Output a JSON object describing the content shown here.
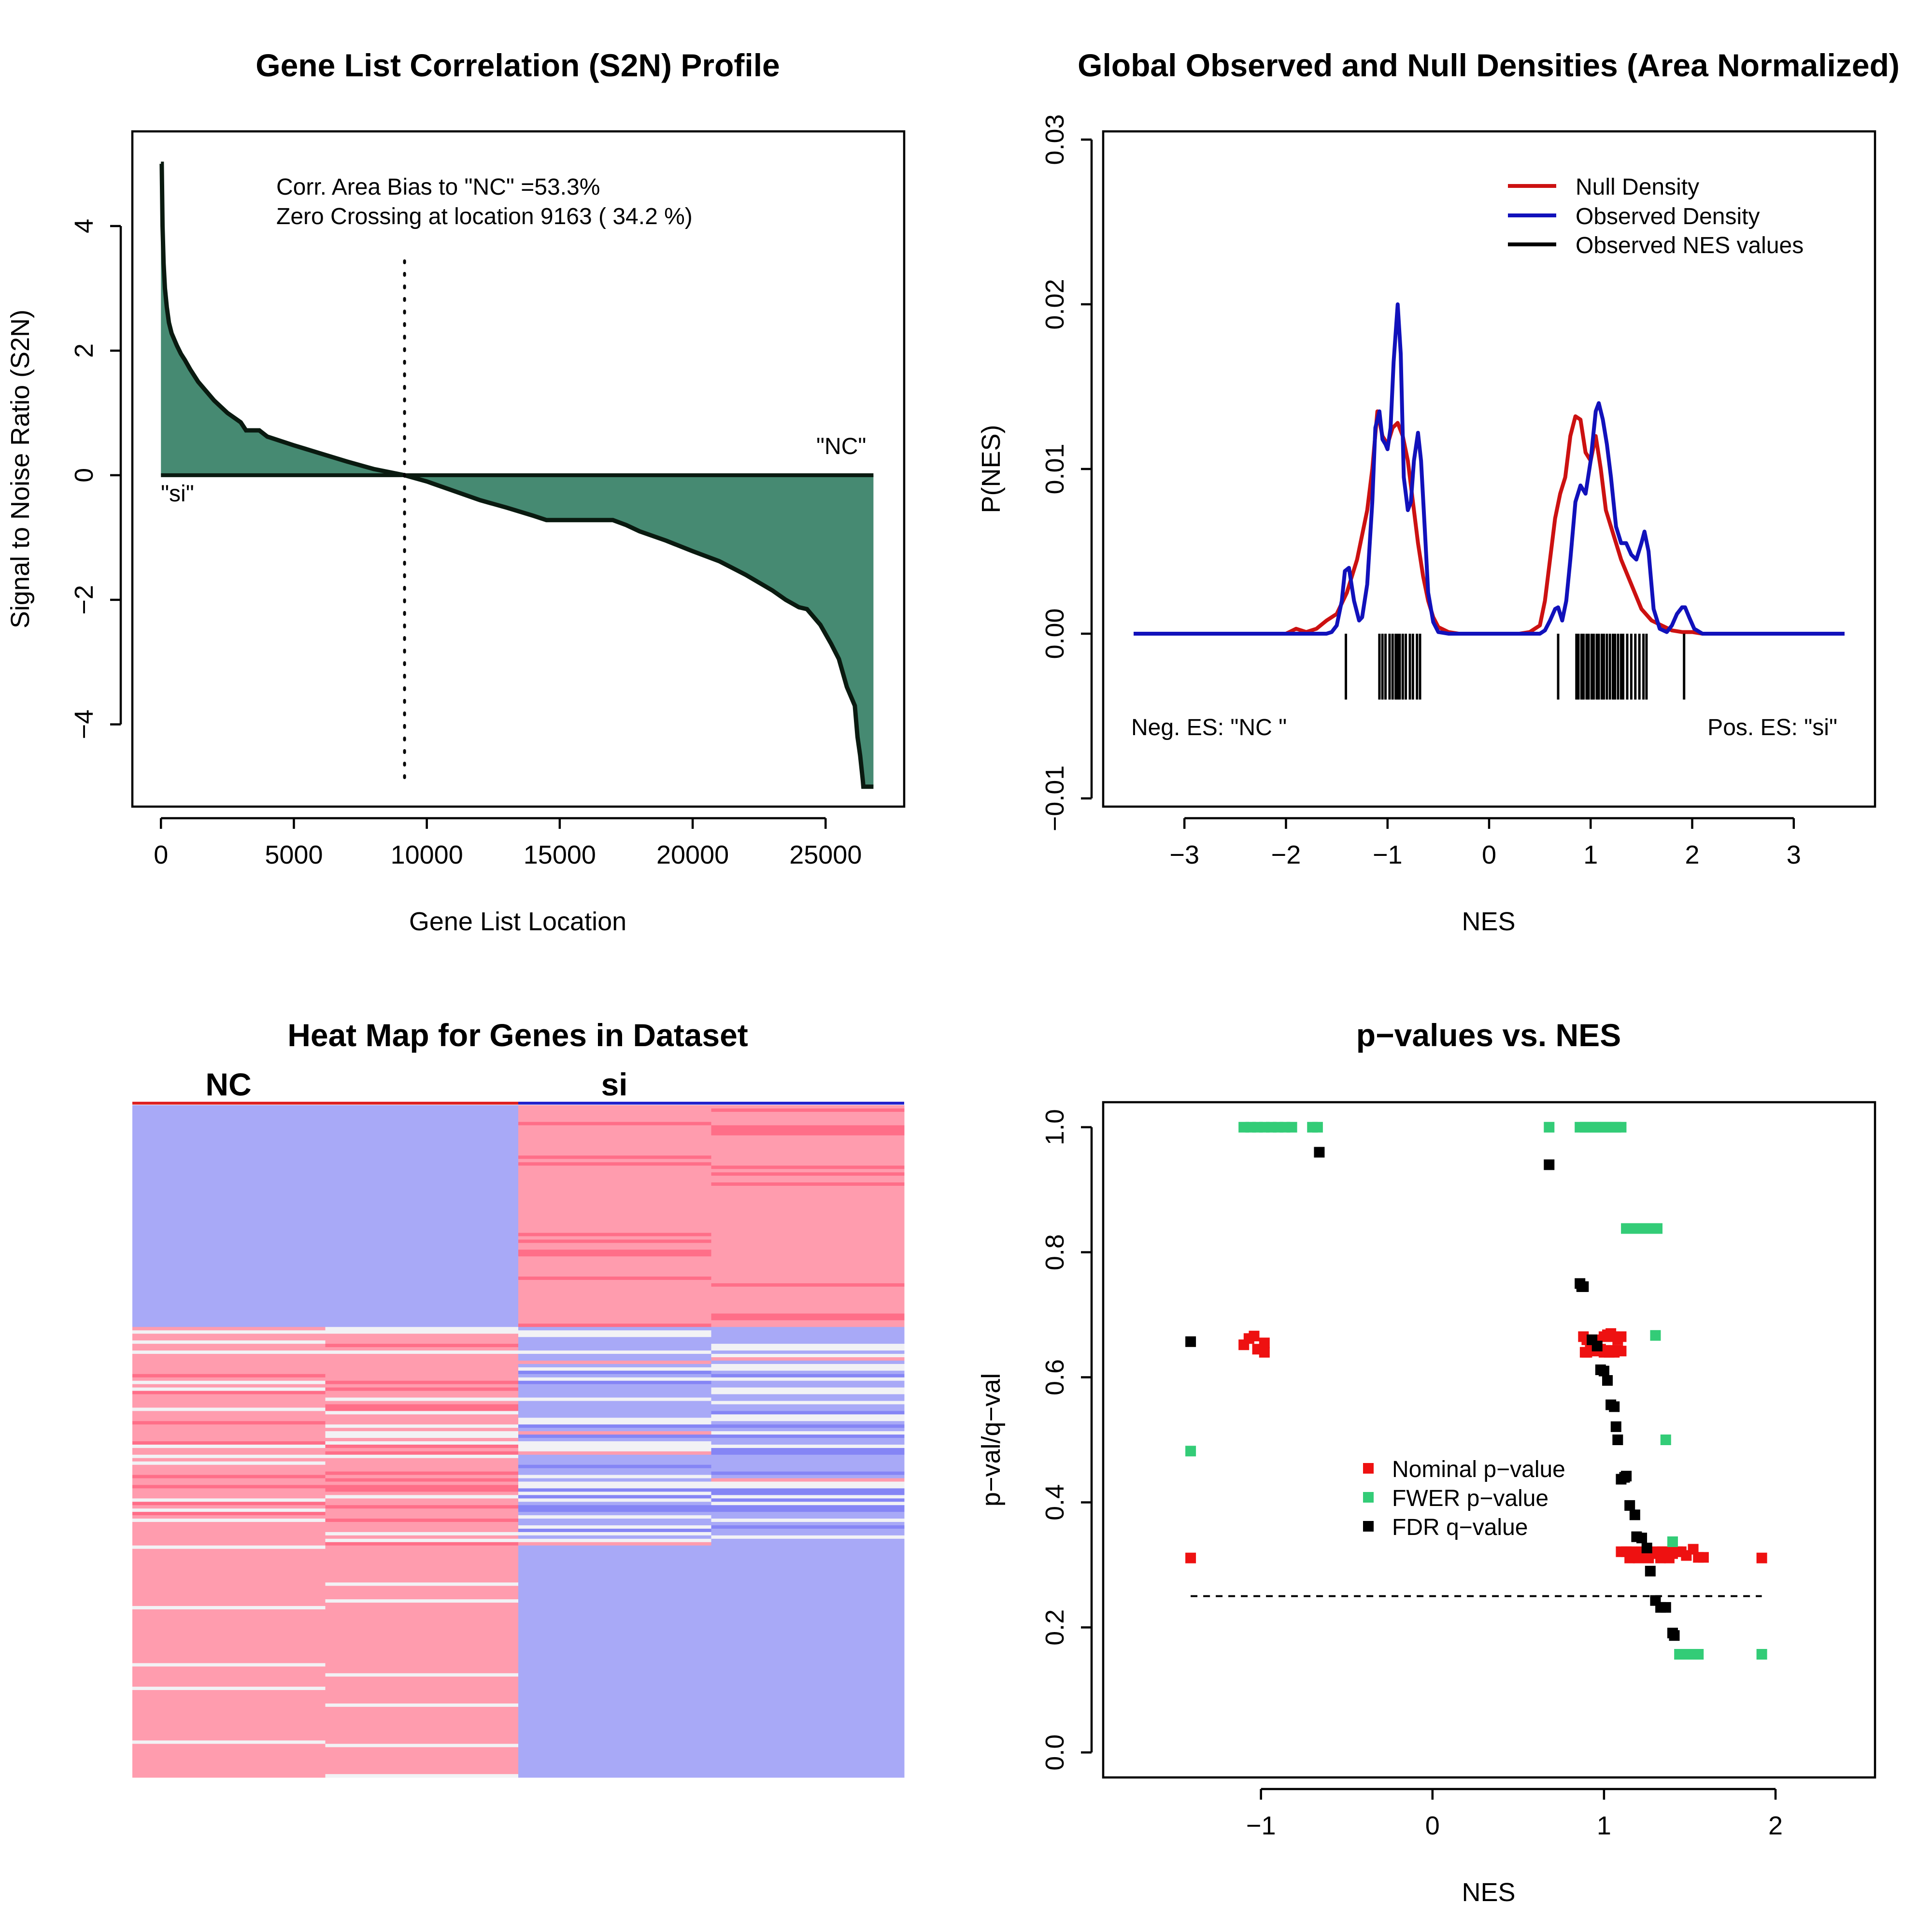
{
  "chart_data": [
    {
      "type": "area",
      "title": "Gene List Correlation (S2N) Profile",
      "xlabel": "Gene List Location",
      "ylabel": "Signal to Noise Ratio (S2N)",
      "xlim": [
        -1076,
        27956
      ],
      "ylim": [
        -5.32,
        5.52
      ],
      "xticks": [
        0,
        5000,
        10000,
        15000,
        20000,
        25000
      ],
      "xtick_labels": [
        "0",
        "5000",
        "10000",
        "15000",
        "20000",
        "25000"
      ],
      "yticks": [
        -4,
        -2,
        0,
        2,
        4
      ],
      "ytick_labels": [
        "−4",
        "−2",
        "0",
        "2",
        "4"
      ],
      "annotations": [
        "Corr. Area Bias to \"NC\" =53.3%",
        "Zero Crossing at location  9163  ( 34.2  %)"
      ],
      "label_pos": "\"NC\"",
      "label_neg": "\"si\"",
      "zero_crossing": 9163,
      "x": [
        0,
        30,
        60,
        100,
        150,
        220,
        300,
        400,
        500,
        600,
        750,
        900,
        1100,
        1400,
        1700,
        2000,
        2500,
        3000,
        3200,
        3700,
        4000,
        5000,
        6000,
        7000,
        8000,
        9163,
        10000,
        11000,
        12000,
        13000,
        14000,
        14500,
        15000,
        16000,
        17000,
        17500,
        18000,
        19000,
        20000,
        21000,
        22000,
        23000,
        23500,
        24000,
        24300,
        24800,
        25200,
        25500,
        25800,
        25950,
        26000,
        26100,
        26200,
        26300,
        26400,
        26420,
        26500,
        26600,
        26800
      ],
      "values": [
        5.0,
        5.0,
        4.0,
        3.4,
        3.0,
        2.7,
        2.45,
        2.28,
        2.18,
        2.08,
        1.95,
        1.85,
        1.7,
        1.5,
        1.35,
        1.2,
        1.0,
        0.85,
        0.72,
        0.72,
        0.62,
        0.48,
        0.35,
        0.22,
        0.1,
        0.0,
        -0.1,
        -0.25,
        -0.4,
        -0.52,
        -0.65,
        -0.72,
        -0.72,
        -0.72,
        -0.72,
        -0.8,
        -0.9,
        -1.05,
        -1.22,
        -1.38,
        -1.6,
        -1.85,
        -2.0,
        -2.12,
        -2.15,
        -2.4,
        -2.7,
        -2.95,
        -3.4,
        -3.55,
        -3.6,
        -3.7,
        -4.2,
        -4.5,
        -4.9,
        -5.0,
        -5.0,
        -5.0,
        -5.0
      ],
      "colors": {
        "fill": "#468a72",
        "line": "#0a1a10"
      }
    },
    {
      "type": "line",
      "title": "Global Observed and Null Densities (Area Normalized)",
      "xlabel": "NES",
      "ylabel": "P(NES)",
      "xlim": [
        -3.8,
        3.8
      ],
      "ylim": [
        -0.0105,
        0.0305
      ],
      "xticks": [
        -3,
        -2,
        -1,
        0,
        1,
        2,
        3
      ],
      "xtick_labels": [
        "−3",
        "−2",
        "−1",
        "0",
        "1",
        "2",
        "3"
      ],
      "yticks": [
        -0.01,
        0.0,
        0.01,
        0.02,
        0.03
      ],
      "ytick_labels": [
        "−0.01",
        "0.00",
        "0.01",
        "0.02",
        "0.03"
      ],
      "legend": [
        "Null Density",
        "Observed Density",
        "Observed NES values"
      ],
      "legend_position": "top-right",
      "annotation_left": "Neg. ES: \"NC \"",
      "annotation_right": "Pos. ES: \"si\"",
      "series": [
        {
          "name": "Null Density",
          "color": "#cc1111",
          "x": [
            -3.5,
            -2.1,
            -2.0,
            -1.9,
            -1.8,
            -1.7,
            -1.6,
            -1.5,
            -1.4,
            -1.3,
            -1.2,
            -1.15,
            -1.1,
            -1.05,
            -1.0,
            -0.95,
            -0.9,
            -0.85,
            -0.8,
            -0.75,
            -0.7,
            -0.65,
            -0.6,
            -0.55,
            -0.5,
            -0.4,
            -0.3,
            0.0,
            0.3,
            0.4,
            0.5,
            0.55,
            0.6,
            0.65,
            0.7,
            0.75,
            0.8,
            0.85,
            0.9,
            0.95,
            1.0,
            1.05,
            1.1,
            1.15,
            1.2,
            1.25,
            1.3,
            1.4,
            1.5,
            1.6,
            1.7,
            1.8,
            1.9,
            2.0,
            2.1,
            3.5
          ],
          "values": [
            0,
            0,
            0,
            0.0003,
            0.0001,
            0.0003,
            0.0008,
            0.0012,
            0.0025,
            0.0045,
            0.0075,
            0.01,
            0.0135,
            0.012,
            0.0115,
            0.0125,
            0.0128,
            0.012,
            0.0105,
            0.008,
            0.0055,
            0.0035,
            0.002,
            0.001,
            0.0004,
            0.0001,
            0,
            0,
            0,
            0.0001,
            0.0005,
            0.002,
            0.0045,
            0.007,
            0.0085,
            0.0095,
            0.012,
            0.0132,
            0.013,
            0.011,
            0.0105,
            0.012,
            0.01,
            0.0075,
            0.0065,
            0.0055,
            0.0045,
            0.003,
            0.0015,
            0.0008,
            0.0005,
            0.0002,
            0.0001,
            0.0001,
            0,
            0
          ]
        },
        {
          "name": "Observed Density",
          "color": "#1111bb",
          "x": [
            -3.5,
            -1.6,
            -1.55,
            -1.5,
            -1.45,
            -1.42,
            -1.38,
            -1.33,
            -1.28,
            -1.25,
            -1.2,
            -1.15,
            -1.12,
            -1.08,
            -1.05,
            -1.02,
            -1.0,
            -0.97,
            -0.94,
            -0.9,
            -0.87,
            -0.84,
            -0.8,
            -0.77,
            -0.74,
            -0.7,
            -0.67,
            -0.63,
            -0.6,
            -0.55,
            -0.5,
            -0.4,
            0.0,
            0.5,
            0.55,
            0.6,
            0.65,
            0.68,
            0.72,
            0.76,
            0.8,
            0.85,
            0.9,
            0.95,
            1.0,
            1.05,
            1.08,
            1.12,
            1.16,
            1.2,
            1.25,
            1.3,
            1.35,
            1.4,
            1.45,
            1.5,
            1.53,
            1.57,
            1.62,
            1.68,
            1.75,
            1.8,
            1.85,
            1.9,
            1.93,
            1.97,
            2.02,
            2.1,
            3.5
          ],
          "values": [
            0,
            0,
            0.0001,
            0.0005,
            0.002,
            0.0038,
            0.004,
            0.002,
            0.0008,
            0.001,
            0.003,
            0.008,
            0.0125,
            0.0135,
            0.0118,
            0.0115,
            0.0112,
            0.0125,
            0.0165,
            0.02,
            0.017,
            0.0095,
            0.0075,
            0.008,
            0.0105,
            0.0122,
            0.0105,
            0.006,
            0.0025,
            0.0007,
            0.0001,
            0,
            0,
            0,
            0.0002,
            0.0008,
            0.0015,
            0.0016,
            0.0008,
            0.002,
            0.0045,
            0.008,
            0.009,
            0.0085,
            0.0105,
            0.0135,
            0.014,
            0.013,
            0.0115,
            0.0095,
            0.0065,
            0.0055,
            0.0055,
            0.0048,
            0.0045,
            0.0055,
            0.0062,
            0.005,
            0.0015,
            0.0003,
            0.0001,
            0.0005,
            0.0012,
            0.0016,
            0.0016,
            0.001,
            0.0003,
            0,
            0
          ]
        }
      ],
      "observed_nes": [
        -1.41,
        -1.08,
        -1.05,
        -1.02,
        -0.98,
        -0.95,
        -0.92,
        -0.9,
        -0.88,
        -0.85,
        -0.82,
        -0.78,
        -0.75,
        -0.71,
        -0.68,
        0.68,
        0.86,
        0.88,
        0.91,
        0.93,
        0.96,
        0.98,
        1.01,
        1.03,
        1.06,
        1.08,
        1.11,
        1.13,
        1.16,
        1.19,
        1.22,
        1.24,
        1.27,
        1.3,
        1.32,
        1.36,
        1.4,
        1.44,
        1.48,
        1.52,
        1.55,
        1.92
      ]
    },
    {
      "type": "heatmap",
      "title": "Heat Map for Genes in Dataset",
      "column_groups": [
        "NC",
        "si"
      ],
      "group_colors": [
        "#dd2222",
        "#2222cc"
      ],
      "columns": 4,
      "colors": {
        "red": "#ff9cae",
        "blue": "#a8a9f7",
        "pale": "#f2f2f5",
        "deep_red": "#ff6e88",
        "deep_blue": "#8585f5"
      }
    },
    {
      "type": "scatter",
      "title": "p−values vs. NES",
      "xlabel": "NES",
      "ylabel": "p−val/q−val",
      "xlim": [
        -1.92,
        2.58
      ],
      "ylim": [
        -0.04,
        1.04
      ],
      "xticks": [
        -1,
        0,
        1,
        2
      ],
      "xtick_labels": [
        "−1",
        "0",
        "1",
        "2"
      ],
      "yticks": [
        0.0,
        0.2,
        0.4,
        0.6,
        0.8,
        1.0
      ],
      "ytick_labels": [
        "0.0",
        "0.2",
        "0.4",
        "0.6",
        "0.8",
        "1.0"
      ],
      "threshold_line": {
        "y": 0.25,
        "x_from": -1.41,
        "x_to": 1.92
      },
      "legend": [
        "Nominal p−value",
        "FWER p−value",
        "FDR q−value"
      ],
      "legend_position": "center",
      "series": [
        {
          "name": "Nominal p−value",
          "color": "#ee1111",
          "x": [
            -1.41,
            -1.1,
            -1.07,
            -1.04,
            -1.02,
            -0.98,
            -0.98,
            0.88,
            0.9,
            0.92,
            0.94,
            0.96,
            0.98,
            1.0,
            1.02,
            1.04,
            1.06,
            1.08,
            1.1,
            0.89,
            0.95,
            1.01,
            1.05,
            1.08,
            1.1,
            0.9,
            1.0,
            1.03,
            1.06,
            1.1,
            1.13,
            1.16,
            1.19,
            1.22,
            1.25,
            1.28,
            1.31,
            1.34,
            1.37,
            1.4,
            1.43,
            1.45,
            1.48,
            1.52,
            1.55,
            1.58,
            1.92,
            1.15,
            1.2,
            1.26,
            1.33,
            1.38
          ],
          "values": [
            0.311,
            0.652,
            0.662,
            0.666,
            0.645,
            0.655,
            0.64,
            0.665,
            0.66,
            0.655,
            0.66,
            0.652,
            0.645,
            0.665,
            0.668,
            0.67,
            0.665,
            0.66,
            0.665,
            0.64,
            0.642,
            0.643,
            0.643,
            0.643,
            0.642,
            0.64,
            0.64,
            0.64,
            0.64,
            0.321,
            0.321,
            0.321,
            0.318,
            0.321,
            0.321,
            0.318,
            0.321,
            0.321,
            0.321,
            0.318,
            0.321,
            0.321,
            0.315,
            0.325,
            0.312,
            0.312,
            0.311,
            0.311,
            0.311,
            0.311,
            0.311,
            0.311
          ]
        },
        {
          "name": "FWER p−value",
          "color": "#33cc77",
          "x": [
            -1.41,
            -1.1,
            -1.06,
            -1.02,
            -0.98,
            -0.94,
            -0.9,
            -0.86,
            -0.82,
            -0.7,
            -0.67,
            0.68,
            0.86,
            0.89,
            0.92,
            0.95,
            0.98,
            1.01,
            1.04,
            1.07,
            1.1,
            1.13,
            1.16,
            1.19,
            1.22,
            1.25,
            1.28,
            1.31,
            1.3,
            1.36,
            1.4,
            1.44,
            1.48,
            1.52,
            1.55,
            1.92
          ],
          "values": [
            0.482,
            1.0,
            1.0,
            1.0,
            1.0,
            1.0,
            1.0,
            1.0,
            1.0,
            1.0,
            1.0,
            1.0,
            1.0,
            1.0,
            1.0,
            1.0,
            1.0,
            1.0,
            1.0,
            1.0,
            1.0,
            0.838,
            0.838,
            0.838,
            0.838,
            0.838,
            0.838,
            0.838,
            0.667,
            0.5,
            0.337,
            0.157,
            0.157,
            0.157,
            0.157,
            0.157
          ]
        },
        {
          "name": "FDR q−value",
          "color": "#000000",
          "x": [
            -1.41,
            -0.66,
            0.68,
            0.86,
            0.87,
            0.88,
            0.93,
            0.96,
            0.98,
            1.0,
            1.02,
            1.04,
            1.06,
            1.07,
            1.08,
            1.1,
            1.12,
            1.13,
            1.15,
            1.18,
            1.19,
            1.22,
            1.25,
            1.27,
            1.3,
            1.33,
            1.36,
            1.4,
            1.41
          ],
          "values": [
            0.657,
            0.96,
            0.94,
            0.75,
            0.745,
            0.745,
            0.66,
            0.65,
            0.612,
            0.61,
            0.595,
            0.556,
            0.553,
            0.521,
            0.5,
            0.437,
            0.44,
            0.442,
            0.395,
            0.38,
            0.345,
            0.343,
            0.327,
            0.29,
            0.243,
            0.232,
            0.232,
            0.191,
            0.187
          ]
        }
      ]
    }
  ]
}
